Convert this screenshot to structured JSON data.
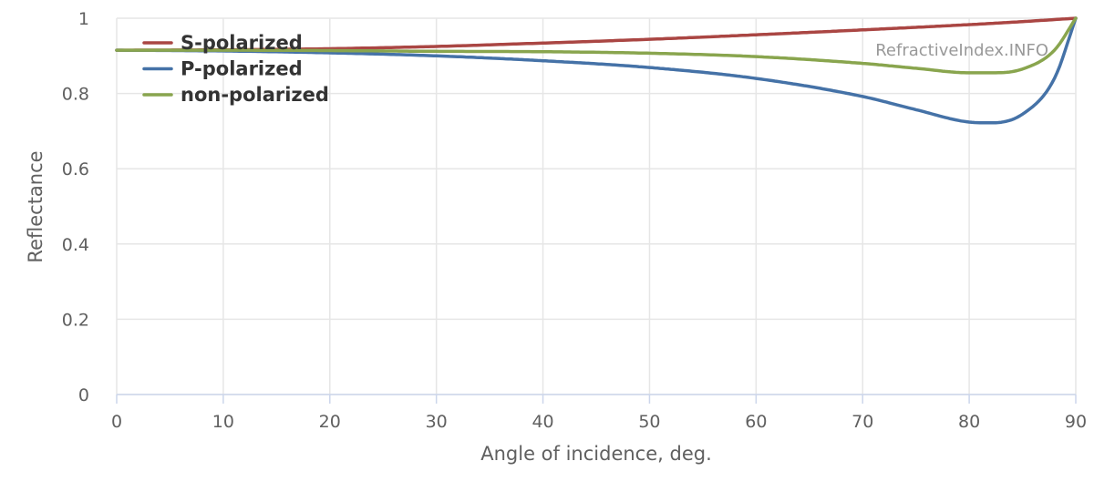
{
  "chart_data": {
    "type": "line",
    "title": "",
    "xlabel": "Angle of incidence, deg.",
    "ylabel": "Reflectance",
    "xlim": [
      0,
      90
    ],
    "ylim": [
      0,
      1
    ],
    "x_ticks": [
      "0",
      "10",
      "20",
      "30",
      "40",
      "50",
      "60",
      "70",
      "80",
      "90"
    ],
    "y_ticks": [
      "0",
      "0.2",
      "0.4",
      "0.6",
      "0.8",
      "1"
    ],
    "grid": true,
    "legend_position": "top-left",
    "credit": "RefractiveIndex.INFO",
    "series": [
      {
        "name": "S-polarized",
        "color": "#aa4643",
        "x": [
          0,
          10,
          20,
          30,
          40,
          50,
          60,
          70,
          80,
          85,
          90
        ],
        "y": [
          0.915,
          0.916,
          0.919,
          0.925,
          0.934,
          0.944,
          0.956,
          0.969,
          0.983,
          0.991,
          1.0
        ]
      },
      {
        "name": "P-polarized",
        "color": "#4572a7",
        "x": [
          0,
          10,
          20,
          30,
          40,
          50,
          60,
          70,
          75,
          80,
          82,
          85,
          88,
          90
        ],
        "y": [
          0.915,
          0.913,
          0.908,
          0.9,
          0.887,
          0.869,
          0.84,
          0.792,
          0.757,
          0.724,
          0.722,
          0.745,
          0.84,
          1.0
        ]
      },
      {
        "name": "non-polarized",
        "color": "#89a54e",
        "x": [
          0,
          10,
          20,
          30,
          40,
          50,
          60,
          70,
          75,
          80,
          82,
          85,
          88,
          90
        ],
        "y": [
          0.915,
          0.915,
          0.914,
          0.912,
          0.911,
          0.907,
          0.898,
          0.88,
          0.867,
          0.855,
          0.855,
          0.865,
          0.915,
          1.0
        ]
      }
    ]
  }
}
